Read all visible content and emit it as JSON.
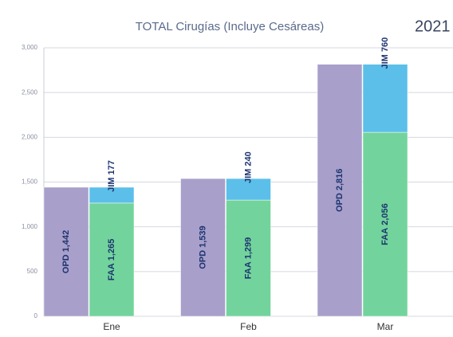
{
  "chart_data": {
    "type": "bar",
    "title": "TOTAL Cirugías (Incluye Cesáreas)",
    "subtitle": "2021",
    "categories": [
      "Ene",
      "Feb",
      "Mar"
    ],
    "series": [
      {
        "name": "OPD",
        "color": "#a89fca",
        "values": [
          1442,
          1539,
          2816
        ],
        "value_labels": [
          "1,442",
          "1,539",
          "2,816"
        ]
      },
      {
        "name": "FAA",
        "color": "#72d49c",
        "values": [
          1265,
          1299,
          2056
        ],
        "value_labels": [
          "1,265",
          "1,299",
          "2,056"
        ]
      },
      {
        "name": "JIM",
        "color": "#5bbfe9",
        "values": [
          177,
          240,
          760
        ]
      }
    ],
    "ylim": [
      0,
      3000
    ],
    "yticks": [
      0,
      {
        "value": 500,
        "label": "500"
      },
      {
        "value": 1000,
        "label": "1,000"
      },
      {
        "value": 1500,
        "label": "1,500"
      },
      {
        "value": 2000,
        "label": "2,000"
      },
      {
        "value": 2500,
        "label": "2,500"
      },
      {
        "value": 3000,
        "label": "3,000"
      }
    ],
    "grid": true
  }
}
